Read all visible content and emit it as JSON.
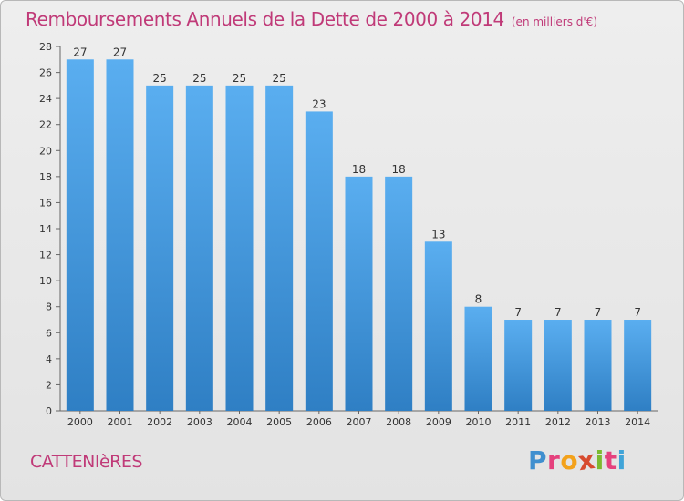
{
  "header": {
    "title": "Remboursements Annuels de la Dette de 2000 à 2014",
    "unit": "(en milliers d'€)"
  },
  "footer": {
    "commune": "CATTENIèRES",
    "logo_letters": [
      "P",
      "r",
      "o",
      "x",
      "i",
      "t",
      "i"
    ]
  },
  "chart_data": {
    "type": "bar",
    "title": "Remboursements Annuels de la Dette de 2000 à 2014",
    "subtitle": "(en milliers d'€)",
    "xlabel": "",
    "ylabel": "",
    "categories": [
      "2000",
      "2001",
      "2002",
      "2003",
      "2004",
      "2005",
      "2006",
      "2007",
      "2008",
      "2009",
      "2010",
      "2011",
      "2012",
      "2013",
      "2014"
    ],
    "values": [
      27,
      27,
      25,
      25,
      25,
      25,
      23,
      18,
      18,
      13,
      8,
      7,
      7,
      7,
      7
    ],
    "ylim": [
      0,
      28
    ],
    "ytick_step": 2,
    "grid": false,
    "bar_color": "#4a9ee0",
    "bar_color_dark": "#2f7fc4",
    "text_color": "#333333"
  }
}
